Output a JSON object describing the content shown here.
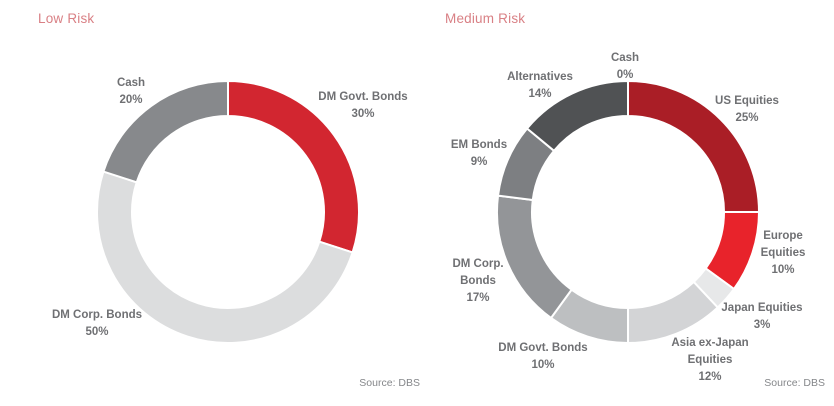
{
  "chart_data": [
    {
      "type": "pie",
      "subtype": "donut",
      "title": "Low Risk",
      "source": "Source: DBS",
      "labels": [
        "DM Govt. Bonds",
        "DM Corp. Bonds",
        "Cash"
      ],
      "values": [
        30,
        50,
        20
      ],
      "display_values": [
        "30%",
        "50%",
        "20%"
      ],
      "colors": [
        "#d22630",
        "#dcddde",
        "#87898c"
      ],
      "start_angle_deg": 0,
      "direction": "clockwise",
      "label_position": "outside"
    },
    {
      "type": "pie",
      "subtype": "donut",
      "title": "Medium Risk",
      "source": "Source: DBS",
      "labels": [
        "Cash",
        "US Equities",
        "Europe Equities",
        "Japan Equities",
        "Asia ex-Japan Equities",
        "DM Govt. Bonds",
        "DM Corp. Bonds",
        "EM Bonds",
        "Alternatives"
      ],
      "values": [
        0,
        25,
        10,
        3,
        12,
        10,
        17,
        9,
        14
      ],
      "display_values": [
        "0%",
        "25%",
        "10%",
        "3%",
        "12%",
        "10%",
        "17%",
        "9%",
        "14%"
      ],
      "colors": [
        null,
        "#aa1e26",
        "#e8232b",
        "#e7e8e9",
        "#d3d4d6",
        "#bdbfc1",
        "#939598",
        "#7d7f82",
        "#505254"
      ],
      "start_angle_deg": 0,
      "direction": "clockwise",
      "label_position": "outside"
    }
  ],
  "colors": {
    "title_accent": "#d98085",
    "label_text": "#6f7073",
    "source_text": "#85878a",
    "separator": "#ffffff"
  }
}
